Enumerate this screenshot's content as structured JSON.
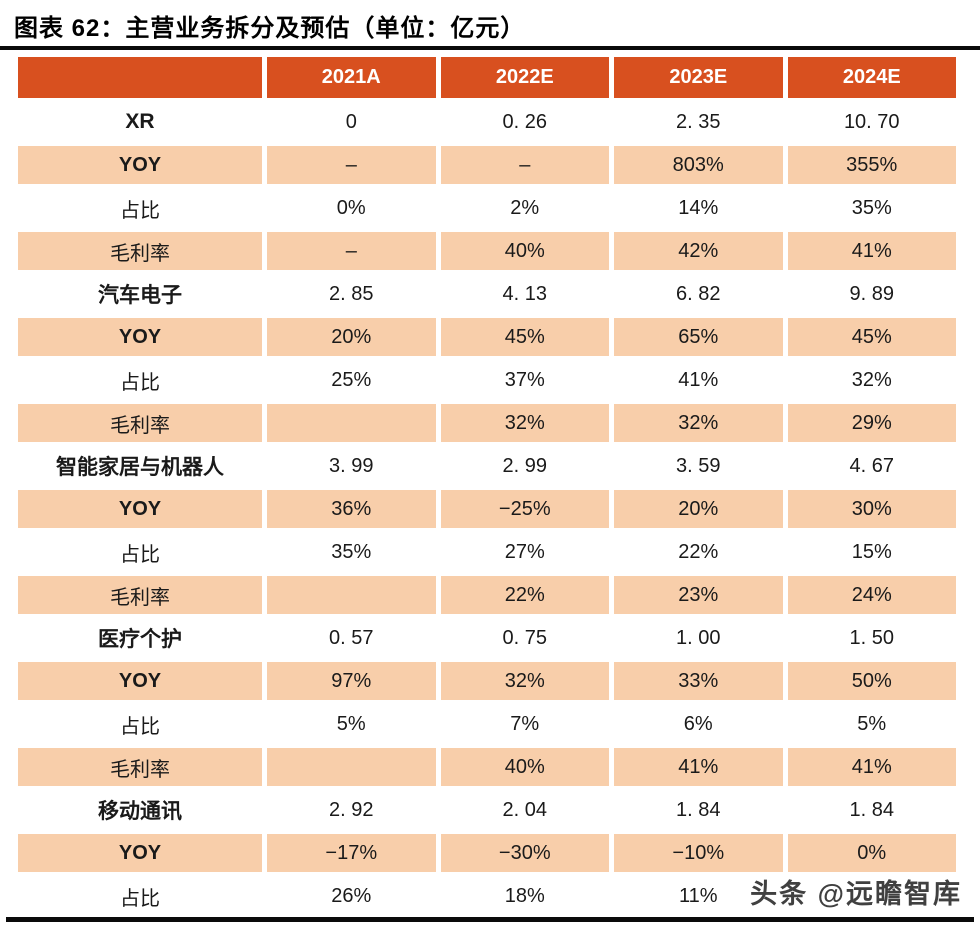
{
  "title": "图表 62：主营业务拆分及预估（单位：亿元）",
  "watermark": "头条 @远瞻智库",
  "header": {
    "label_column": ""
  },
  "colors": {
    "header_bg": "#D8501F",
    "header_text": "#FFFFFF",
    "row_stripe": "#F8CEAA",
    "body_text": "#1A1A1A",
    "title_color": "#000000",
    "watermark_color": "#404040"
  },
  "chart_data": {
    "type": "table",
    "title": "图表 62：主营业务拆分及预估（单位：亿元）",
    "unit": "亿元",
    "columns": [
      "2021A",
      "2022E",
      "2023E",
      "2024E"
    ],
    "row_labels": {
      "yoy": "YOY",
      "share": "占比",
      "gross_margin": "毛利率"
    },
    "sections": [
      {
        "name": "XR",
        "revenue": [
          "0",
          "0. 26",
          "2. 35",
          "10. 70"
        ],
        "yoy": [
          "–",
          "–",
          "803%",
          "355%"
        ],
        "share": [
          "0%",
          "2%",
          "14%",
          "35%"
        ],
        "gross_margin": [
          "–",
          "40%",
          "42%",
          "41%"
        ]
      },
      {
        "name": "汽车电子",
        "revenue": [
          "2. 85",
          "4. 13",
          "6. 82",
          "9. 89"
        ],
        "yoy": [
          "20%",
          "45%",
          "65%",
          "45%"
        ],
        "share": [
          "25%",
          "37%",
          "41%",
          "32%"
        ],
        "gross_margin": [
          "",
          "32%",
          "32%",
          "29%"
        ]
      },
      {
        "name": "智能家居与机器人",
        "revenue": [
          "3. 99",
          "2. 99",
          "3. 59",
          "4. 67"
        ],
        "yoy": [
          "36%",
          "−25%",
          "20%",
          "30%"
        ],
        "share": [
          "35%",
          "27%",
          "22%",
          "15%"
        ],
        "gross_margin": [
          "",
          "22%",
          "23%",
          "24%"
        ]
      },
      {
        "name": "医疗个护",
        "revenue": [
          "0. 57",
          "0. 75",
          "1. 00",
          "1. 50"
        ],
        "yoy": [
          "97%",
          "32%",
          "33%",
          "50%"
        ],
        "share": [
          "5%",
          "7%",
          "6%",
          "5%"
        ],
        "gross_margin": [
          "",
          "40%",
          "41%",
          "41%"
        ]
      },
      {
        "name": "移动通讯",
        "revenue": [
          "2. 92",
          "2. 04",
          "1. 84",
          "1. 84"
        ],
        "yoy": [
          "−17%",
          "−30%",
          "−10%",
          "0%"
        ],
        "share": [
          "26%",
          "18%",
          "11%",
          ""
        ],
        "visible_rows": [
          "revenue",
          "yoy",
          "share"
        ]
      }
    ]
  }
}
